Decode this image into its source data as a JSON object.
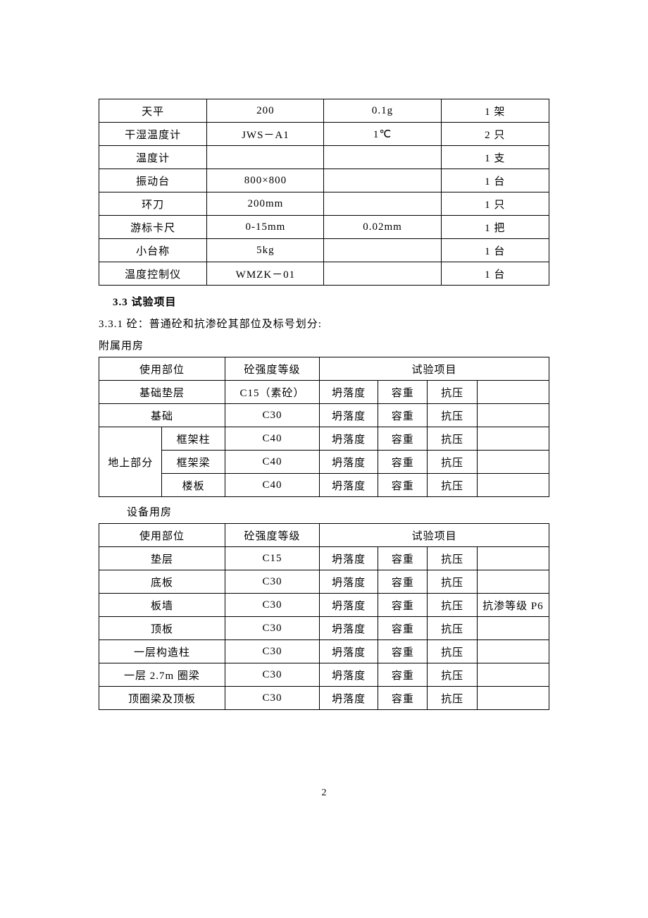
{
  "equipment_table": {
    "rows": [
      {
        "name": "天平",
        "spec": "200",
        "accuracy": "0.1g",
        "qty": "1 架"
      },
      {
        "name": "干湿温度计",
        "spec": "JWS－A1",
        "accuracy": "1℃",
        "qty": "2 只"
      },
      {
        "name": "温度计",
        "spec": "",
        "accuracy": "",
        "qty": "1 支"
      },
      {
        "name": "振动台",
        "spec": "800×800",
        "accuracy": "",
        "qty": "1 台"
      },
      {
        "name": "环刀",
        "spec": "200mm",
        "accuracy": "",
        "qty": "1 只"
      },
      {
        "name": "游标卡尺",
        "spec": "0-15mm",
        "accuracy": "0.02mm",
        "qty": "1 把"
      },
      {
        "name": "小台称",
        "spec": "5kg",
        "accuracy": "",
        "qty": "1 台"
      },
      {
        "name": "温度控制仪",
        "spec": "WMZK－01",
        "accuracy": "",
        "qty": "1 台"
      }
    ]
  },
  "section_33": "3.3 试验项目",
  "section_331": "3.3.1 砼：普通砼和抗渗砼其部位及标号划分:",
  "subtitle_1": "附属用房",
  "subtitle_2": "设备用房",
  "table2": {
    "header": {
      "loc": "使用部位",
      "grade": "砼强度等级",
      "items": "试验项目"
    },
    "rows": [
      {
        "loc1": "基础垫层",
        "loc2": "",
        "span": 2,
        "grade": "C15（素砼）",
        "a": "坍落度",
        "b": "容重",
        "c": "抗压",
        "d": ""
      },
      {
        "loc1": "基础",
        "loc2": "",
        "span": 2,
        "grade": "C30",
        "a": "坍落度",
        "b": "容重",
        "c": "抗压",
        "d": ""
      },
      {
        "loc1": "地上部分",
        "loc2": "框架柱",
        "span": 1,
        "grade": "C40",
        "a": "坍落度",
        "b": "容重",
        "c": "抗压",
        "d": "",
        "rowspan_first": 3
      },
      {
        "loc1": "",
        "loc2": "框架梁",
        "span": 1,
        "grade": "C40",
        "a": "坍落度",
        "b": "容重",
        "c": "抗压",
        "d": ""
      },
      {
        "loc1": "",
        "loc2": "楼板",
        "span": 1,
        "grade": "C40",
        "a": "坍落度",
        "b": "容重",
        "c": "抗压",
        "d": ""
      }
    ]
  },
  "table3": {
    "header": {
      "loc": "使用部位",
      "grade": "砼强度等级",
      "items": "试验项目"
    },
    "rows": [
      {
        "loc": "垫层",
        "grade": "C15",
        "a": "坍落度",
        "b": "容重",
        "c": "抗压",
        "d": ""
      },
      {
        "loc": "底板",
        "grade": "C30",
        "a": "坍落度",
        "b": "容重",
        "c": "抗压",
        "d": ""
      },
      {
        "loc": "板墙",
        "grade": "C30",
        "a": "坍落度",
        "b": "容重",
        "c": "抗压",
        "d": "抗渗等级 P6"
      },
      {
        "loc": "顶板",
        "grade": "C30",
        "a": "坍落度",
        "b": "容重",
        "c": "抗压",
        "d": ""
      },
      {
        "loc": "一层构造柱",
        "grade": "C30",
        "a": "坍落度",
        "b": "容重",
        "c": "抗压",
        "d": ""
      },
      {
        "loc": "一层 2.7m 圈梁",
        "grade": "C30",
        "a": "坍落度",
        "b": "容重",
        "c": "抗压",
        "d": ""
      },
      {
        "loc": "顶圈梁及顶板",
        "grade": "C30",
        "a": "坍落度",
        "b": "容重",
        "c": "抗压",
        "d": ""
      }
    ]
  },
  "page_number": "2"
}
